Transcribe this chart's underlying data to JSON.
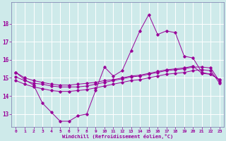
{
  "xlabel": "Windchill (Refroidissement éolien,°C)",
  "background_color": "#ceeaea",
  "line_color": "#990099",
  "grid_color": "#b8d8d8",
  "x_hours": [
    0,
    1,
    2,
    3,
    4,
    5,
    6,
    7,
    8,
    9,
    10,
    11,
    12,
    13,
    14,
    15,
    16,
    17,
    18,
    19,
    20,
    21,
    22,
    23
  ],
  "line1_y": [
    15.3,
    14.9,
    14.6,
    13.6,
    13.1,
    12.6,
    12.6,
    12.9,
    13.0,
    14.3,
    15.6,
    15.1,
    15.4,
    16.5,
    17.6,
    18.5,
    17.4,
    17.6,
    17.5,
    16.2,
    16.1,
    15.3,
    15.2,
    14.9
  ],
  "line2_y": [
    15.3,
    15.0,
    14.85,
    14.75,
    14.65,
    14.6,
    14.6,
    14.65,
    14.7,
    14.75,
    14.85,
    14.9,
    15.0,
    15.1,
    15.15,
    15.25,
    15.35,
    15.45,
    15.5,
    15.55,
    15.65,
    15.25,
    15.2,
    14.9
  ],
  "line3_y": [
    15.05,
    14.85,
    14.7,
    14.65,
    14.55,
    14.5,
    14.5,
    14.5,
    14.55,
    14.65,
    14.75,
    14.85,
    14.95,
    15.05,
    15.1,
    15.2,
    15.3,
    15.4,
    15.45,
    15.5,
    15.6,
    15.6,
    15.55,
    14.8
  ],
  "line4_y": [
    14.85,
    14.65,
    14.5,
    14.4,
    14.3,
    14.25,
    14.25,
    14.3,
    14.35,
    14.45,
    14.55,
    14.65,
    14.75,
    14.85,
    14.9,
    15.0,
    15.1,
    15.2,
    15.25,
    15.3,
    15.4,
    15.45,
    15.4,
    14.7
  ],
  "ylim": [
    12.3,
    19.2
  ],
  "yticks": [
    13,
    14,
    15,
    16,
    17,
    18
  ],
  "xticks": [
    0,
    1,
    2,
    3,
    4,
    5,
    6,
    7,
    8,
    9,
    10,
    11,
    12,
    13,
    14,
    15,
    16,
    17,
    18,
    19,
    20,
    21,
    22,
    23
  ]
}
